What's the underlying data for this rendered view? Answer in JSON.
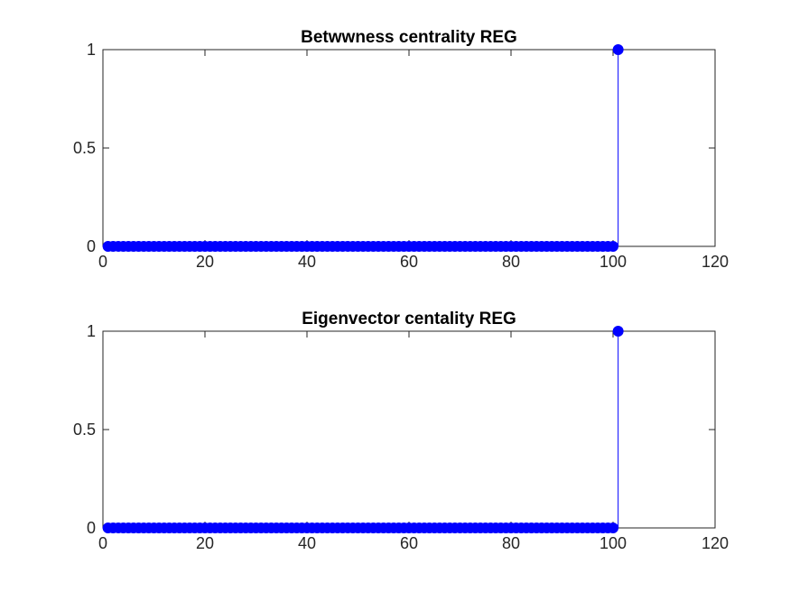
{
  "chart_data": [
    {
      "type": "stem",
      "title": "Betwwness centrality REG",
      "xlabel": "",
      "ylabel": "",
      "xlim": [
        0,
        120
      ],
      "ylim": [
        0,
        1
      ],
      "xticks": [
        "0",
        "20",
        "40",
        "60",
        "80",
        "100",
        "120"
      ],
      "yticks": [
        "0",
        "0.5",
        "1"
      ],
      "grid": false,
      "color": "#0000ff",
      "series": [
        {
          "x_start": 1,
          "x_end": 101,
          "values_default": 0,
          "overrides": {
            "101": 1
          }
        }
      ]
    },
    {
      "type": "stem",
      "title": "Eigenvector centality REG",
      "xlabel": "",
      "ylabel": "",
      "xlim": [
        0,
        120
      ],
      "ylim": [
        0,
        1
      ],
      "xticks": [
        "0",
        "20",
        "40",
        "60",
        "80",
        "100",
        "120"
      ],
      "yticks": [
        "0",
        "0.5",
        "1"
      ],
      "grid": false,
      "color": "#0000ff",
      "series": [
        {
          "x_start": 1,
          "x_end": 101,
          "values_default": 0,
          "overrides": {
            "101": 1
          }
        }
      ]
    }
  ]
}
